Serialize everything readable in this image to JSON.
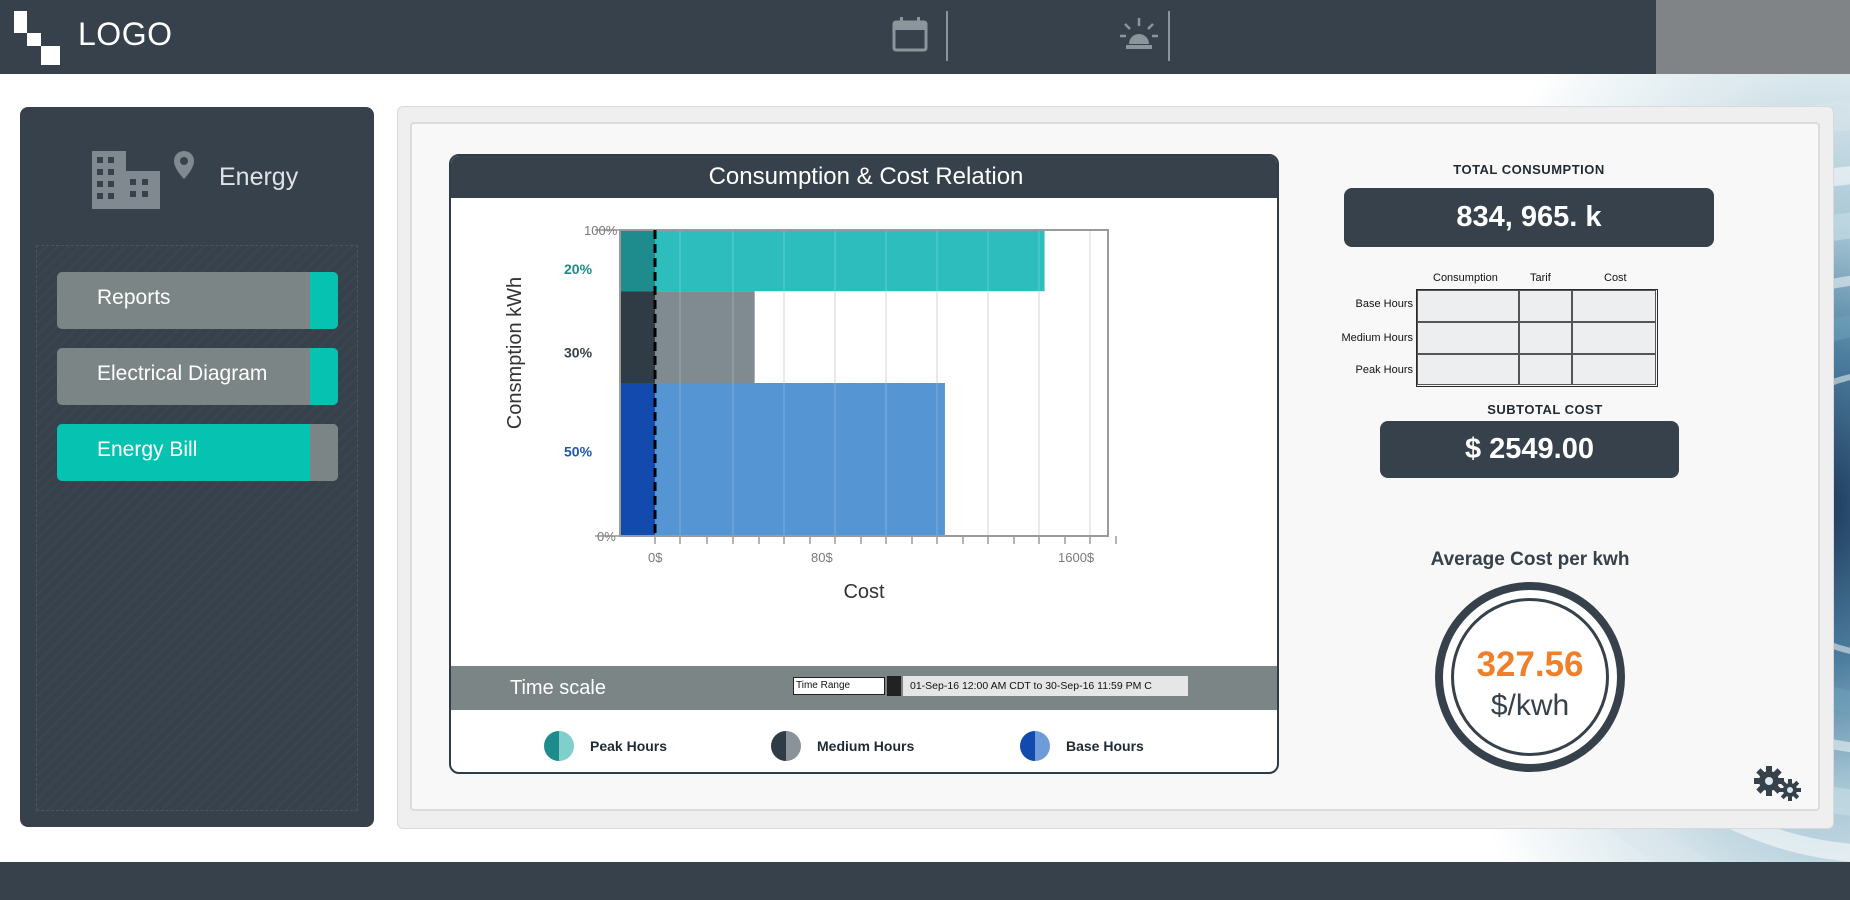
{
  "header": {
    "logo_text": "LOGO",
    "icons": [
      "calendar-icon",
      "alarm-light-icon"
    ]
  },
  "sidebar": {
    "header_icon": "buildings-location-icon",
    "header_label": "Energy",
    "items": [
      {
        "label": "Reports",
        "active": false
      },
      {
        "label": "Electrical Diagram",
        "active": false
      },
      {
        "label": "Energy Bill",
        "active": true
      }
    ]
  },
  "chart_panel": {
    "title": "Consumption & Cost Relation",
    "timescale_label": "Time scale",
    "time_range_label": "Time Range",
    "time_range_value": "01-Sep-16 12:00 AM CDT  to  30-Sep-16 11:59 PM C",
    "legend": [
      {
        "label": "Peak Hours",
        "dark": "#1e8c8c",
        "light": "#7fcfca"
      },
      {
        "label": "Medium Hours",
        "dark": "#2f3b45",
        "light": "#8a9399"
      },
      {
        "label": "Base Hours",
        "dark": "#124aad",
        "light": "#6e9cd8"
      }
    ]
  },
  "chart_data": {
    "type": "bar",
    "orientation": "horizontal-stacked-marimekko",
    "xlabel": "Cost",
    "ylabel": "Consmption kWh",
    "y_ticks": [
      "100%",
      "0%"
    ],
    "x_ticks": [
      "0$",
      "80$",
      "1600$"
    ],
    "series": [
      {
        "name": "Peak Hours",
        "share_label": "20%",
        "share": 20,
        "cost_extent": 0.86,
        "color": "#2dbdbd",
        "stub_color": "#1e8c8c",
        "label_color": "#1b8c8a"
      },
      {
        "name": "Medium Hours",
        "share_label": "30%",
        "share": 30,
        "cost_extent": 0.22,
        "color": "#808b91",
        "stub_color": "#2f3b45",
        "label_color": "#36414b"
      },
      {
        "name": "Base Hours",
        "share_label": "50%",
        "share": 50,
        "cost_extent": 0.64,
        "color": "#5595d3",
        "stub_color": "#124aad",
        "label_color": "#1f57b0"
      }
    ],
    "grid": true,
    "reference_line": "dashed vertical at 0$"
  },
  "stats": {
    "total_consumption_caption": "TOTAL  CONSUMPTION",
    "total_consumption_value": "834, 965. k",
    "table": {
      "columns": [
        "Consumption",
        "Tarif",
        "Cost"
      ],
      "rows": [
        "Base Hours",
        "Medium Hours",
        "Peak Hours"
      ]
    },
    "subtotal_caption": "SUBTOTAL COST",
    "subtotal_value": "$ 2549.00",
    "avg_caption": "Average Cost per kwh",
    "avg_value": "327.56",
    "avg_unit": "$/kwh"
  },
  "colors": {
    "dark": "#36414b",
    "accent": "#06c2b0",
    "grey": "#7b8586",
    "orange": "#f07f2b"
  }
}
